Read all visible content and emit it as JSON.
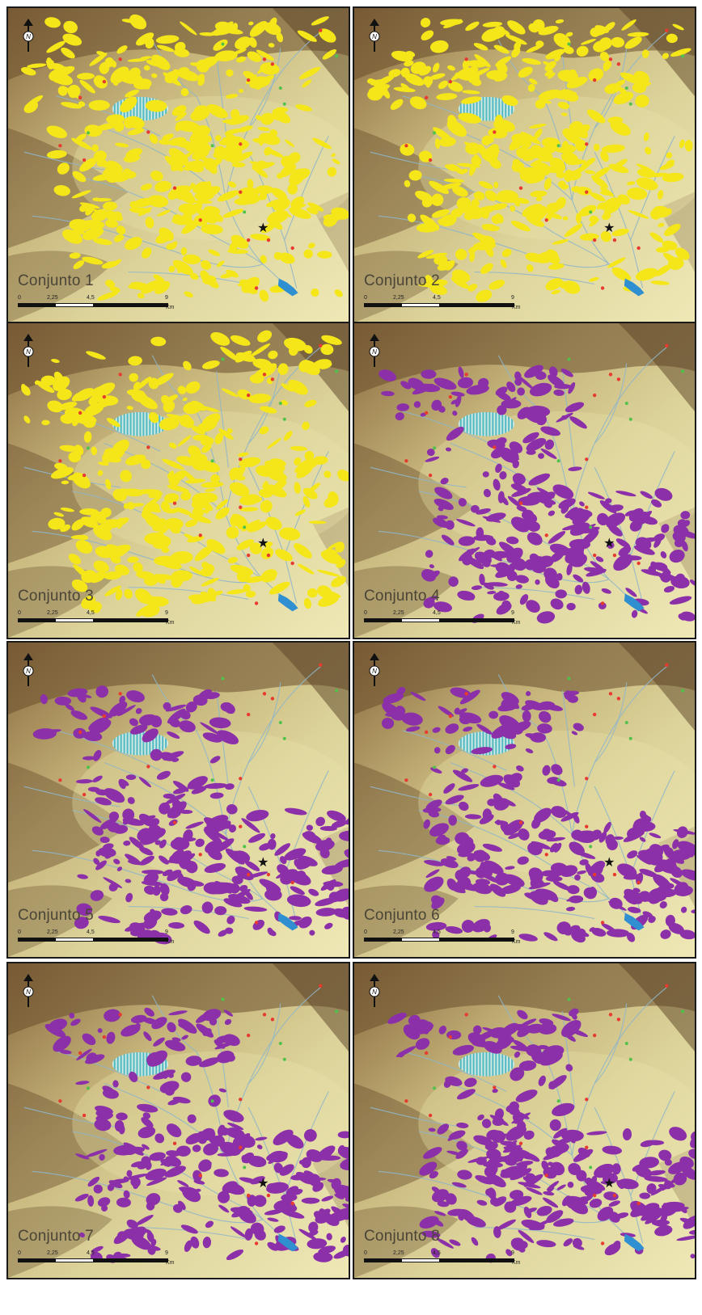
{
  "panels": [
    {
      "title": "Conjunto 1",
      "overlay_color": "#f5e61a"
    },
    {
      "title": "Conjunto 2",
      "overlay_color": "#f5e61a"
    },
    {
      "title": "Conjunto 3",
      "overlay_color": "#f5e61a"
    },
    {
      "title": "Conjunto 4",
      "overlay_color": "#8b30a8"
    },
    {
      "title": "Conjunto 5",
      "overlay_color": "#8b30a8"
    },
    {
      "title": "Conjunto 6",
      "overlay_color": "#8b30a8"
    },
    {
      "title": "Conjunto 7",
      "overlay_color": "#8b30a8"
    },
    {
      "title": "Conjunto 8",
      "overlay_color": "#8b30a8"
    }
  ],
  "scale_bar": {
    "ticks": [
      "0",
      "2,25",
      "4,5",
      "9"
    ],
    "unit": "Km"
  },
  "north_arrow": {
    "letter": "N",
    "icon": "north-arrow-icon"
  },
  "colors": {
    "terrain_light": "#e9e2a8",
    "terrain_dark": "#6a4f2e",
    "rivers": "#8fb6c9",
    "water_body": "#2f8fd0",
    "hatched_area": "#4fb8c0",
    "site_red": "#e83a2e",
    "site_green": "#4fc24a",
    "star_marker": "#111111"
  }
}
